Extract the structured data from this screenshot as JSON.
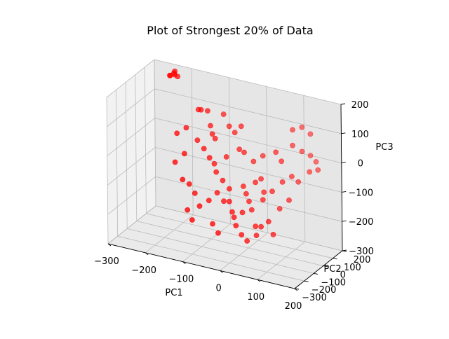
{
  "chart_data": {
    "type": "scatter",
    "title": "Plot of Strongest 20% of Data",
    "xlabel": "PC1",
    "ylabel": "PC2",
    "zlabel": "PC3",
    "xlim": [
      -300,
      200
    ],
    "ylim": [
      -300,
      200
    ],
    "zlim": [
      -300,
      200
    ],
    "xticks": [
      -300,
      -200,
      -100,
      0,
      100,
      200
    ],
    "yticks": [
      -300,
      -200,
      -100,
      0,
      100,
      200
    ],
    "zticks": [
      -300,
      -200,
      -100,
      0,
      100,
      200
    ],
    "xtick_labels": [
      "−300",
      "−200",
      "−100",
      "0",
      "100",
      "200"
    ],
    "ytick_labels": [
      "−300",
      "−200",
      "−100",
      "0",
      "100",
      "200"
    ],
    "ztick_labels": [
      "−300",
      "−200",
      "−100",
      "0",
      "100",
      "200"
    ],
    "grid": true,
    "marker_color": "#ff0000",
    "points": [
      {
        "x": -240,
        "y": 170,
        "z": 180
      },
      {
        "x": -245,
        "y": 150,
        "z": 175
      },
      {
        "x": -235,
        "y": 160,
        "z": 190
      },
      {
        "x": -250,
        "y": 165,
        "z": 170
      },
      {
        "x": -230,
        "y": 140,
        "z": 185
      },
      {
        "x": -225,
        "y": 150,
        "z": 178
      },
      {
        "x": -160,
        "y": 110,
        "z": 95
      },
      {
        "x": -150,
        "y": 100,
        "z": 100
      },
      {
        "x": -130,
        "y": 90,
        "z": 105
      },
      {
        "x": -120,
        "y": 80,
        "z": 60
      },
      {
        "x": -110,
        "y": 60,
        "z": 40
      },
      {
        "x": -100,
        "y": 50,
        "z": 30
      },
      {
        "x": -140,
        "y": 20,
        "z": 20
      },
      {
        "x": -120,
        "y": 10,
        "z": 0
      },
      {
        "x": -100,
        "y": -10,
        "z": -20
      },
      {
        "x": -90,
        "y": 0,
        "z": -40
      },
      {
        "x": -80,
        "y": -20,
        "z": -60
      },
      {
        "x": -60,
        "y": -30,
        "z": -80
      },
      {
        "x": -70,
        "y": -50,
        "z": -120
      },
      {
        "x": -50,
        "y": -60,
        "z": -140
      },
      {
        "x": -40,
        "y": -40,
        "z": -100
      },
      {
        "x": -60,
        "y": 10,
        "z": -10
      },
      {
        "x": -30,
        "y": 30,
        "z": 20
      },
      {
        "x": -20,
        "y": 40,
        "z": 10
      },
      {
        "x": -10,
        "y": -10,
        "z": -90
      },
      {
        "x": 0,
        "y": -20,
        "z": -110
      },
      {
        "x": 10,
        "y": -30,
        "z": -130
      },
      {
        "x": 20,
        "y": 0,
        "z": -70
      },
      {
        "x": 30,
        "y": 20,
        "z": -60
      },
      {
        "x": 40,
        "y": 10,
        "z": -100
      },
      {
        "x": -20,
        "y": -90,
        "z": -160
      },
      {
        "x": -10,
        "y": -110,
        "z": -170
      },
      {
        "x": 0,
        "y": -130,
        "z": -190
      },
      {
        "x": 10,
        "y": -100,
        "z": -150
      },
      {
        "x": 30,
        "y": -80,
        "z": -140
      },
      {
        "x": 50,
        "y": -120,
        "z": -180
      },
      {
        "x": 60,
        "y": -150,
        "z": -200
      },
      {
        "x": 40,
        "y": -170,
        "z": -220
      },
      {
        "x": 70,
        "y": -140,
        "z": -170
      },
      {
        "x": -90,
        "y": -60,
        "z": -150
      },
      {
        "x": -110,
        "y": -80,
        "z": -170
      },
      {
        "x": -130,
        "y": -50,
        "z": -140
      },
      {
        "x": -150,
        "y": -30,
        "z": -120
      },
      {
        "x": -140,
        "y": -90,
        "z": -190
      },
      {
        "x": -120,
        "y": -120,
        "z": -210
      },
      {
        "x": 90,
        "y": 120,
        "z": 100
      },
      {
        "x": 110,
        "y": 140,
        "z": 110
      },
      {
        "x": 130,
        "y": 150,
        "z": 90
      },
      {
        "x": 120,
        "y": 100,
        "z": 40
      },
      {
        "x": 140,
        "y": 110,
        "z": 30
      },
      {
        "x": 160,
        "y": 90,
        "z": 20
      },
      {
        "x": 150,
        "y": 60,
        "z": -10
      },
      {
        "x": 170,
        "y": 70,
        "z": 0
      },
      {
        "x": 100,
        "y": 80,
        "z": 60
      },
      {
        "x": 80,
        "y": 40,
        "z": 10
      },
      {
        "x": 60,
        "y": 60,
        "z": 30
      },
      {
        "x": 110,
        "y": 30,
        "z": -30
      },
      {
        "x": 130,
        "y": 20,
        "z": -40
      },
      {
        "x": 90,
        "y": 10,
        "z": -50
      },
      {
        "x": 70,
        "y": -20,
        "z": -80
      },
      {
        "x": 50,
        "y": -40,
        "z": -110
      },
      {
        "x": 100,
        "y": -60,
        "z": -120
      },
      {
        "x": 120,
        "y": -40,
        "z": -90
      },
      {
        "x": -80,
        "y": 120,
        "z": 60
      },
      {
        "x": -60,
        "y": 100,
        "z": 50
      },
      {
        "x": -40,
        "y": 90,
        "z": 80
      },
      {
        "x": -100,
        "y": 140,
        "z": 90
      },
      {
        "x": -180,
        "y": 60,
        "z": 40
      },
      {
        "x": -200,
        "y": 40,
        "z": 20
      },
      {
        "x": -170,
        "y": 0,
        "z": -30
      },
      {
        "x": -190,
        "y": -20,
        "z": -60
      },
      {
        "x": -160,
        "y": -60,
        "z": -100
      },
      {
        "x": 0,
        "y": 60,
        "z": -20
      },
      {
        "x": 20,
        "y": 80,
        "z": 0
      },
      {
        "x": -30,
        "y": -80,
        "z": -130
      },
      {
        "x": 80,
        "y": -100,
        "z": -160
      },
      {
        "x": 100,
        "y": -130,
        "z": -190
      },
      {
        "x": -60,
        "y": -140,
        "z": -200
      },
      {
        "x": -40,
        "y": -160,
        "z": -220
      },
      {
        "x": 20,
        "y": -150,
        "z": -210
      }
    ]
  }
}
